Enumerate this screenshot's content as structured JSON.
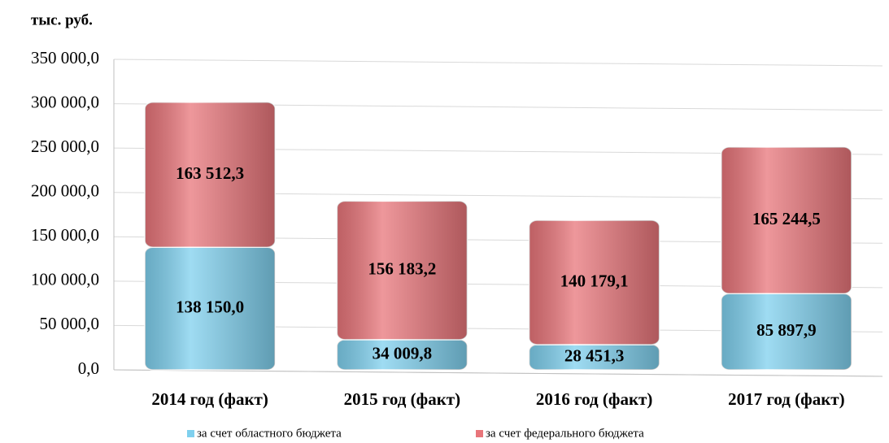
{
  "chart_data": {
    "type": "stacked_bar",
    "y_label": "тыс. руб.",
    "categories": [
      "2014 год (факт)",
      "2015 год (факт)",
      "2016 год (факт)",
      "2017 год (факт)"
    ],
    "series": [
      {
        "name": "за счет областного бюджета",
        "color": "#7fd0ee",
        "values": [
          138150.0,
          34009.8,
          28451.3,
          85897.9
        ],
        "value_labels": [
          "138 150,0",
          "34 009,8",
          "28 451,3",
          "85 897,9"
        ]
      },
      {
        "name": "за счет федерального бюджета",
        "color": "#e8757a",
        "values": [
          163512.3,
          156183.2,
          140179.1,
          165244.5
        ],
        "value_labels": [
          "163 512,3",
          "156 183,2",
          "140 179,1",
          "165 244,5"
        ]
      }
    ],
    "ylim": [
      0,
      350000
    ],
    "yticks": [
      {
        "value": 0,
        "label": "0,0"
      },
      {
        "value": 50000,
        "label": "50 000,0"
      },
      {
        "value": 100000,
        "label": "100 000,0"
      },
      {
        "value": 150000,
        "label": "150 000,0"
      },
      {
        "value": 200000,
        "label": "200 000,0"
      },
      {
        "value": 250000,
        "label": "250 000,0"
      },
      {
        "value": 300000,
        "label": "300 000,0"
      },
      {
        "value": 350000,
        "label": "350 000,0"
      }
    ],
    "grid": true,
    "legend": "bottom"
  }
}
